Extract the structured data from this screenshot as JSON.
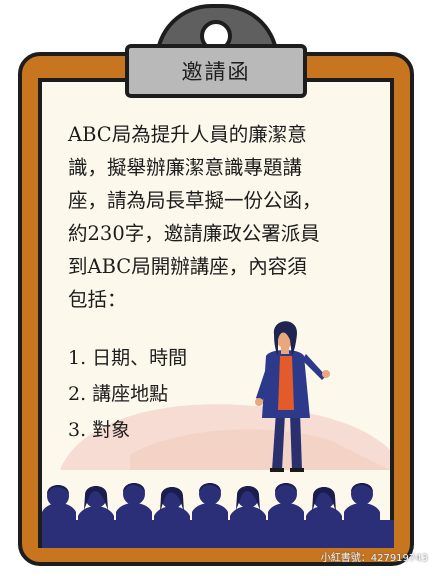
{
  "title": "邀請函",
  "body_lines": [
    "ABC局為提升人員的廉潔意",
    "識，擬舉辦廉潔意識專題講",
    "座，請為局長草擬一份公函，",
    "約230字，邀請廉政公署派員",
    "到ABC局開辦講座，內容須",
    "包括："
  ],
  "list_items": [
    "1. 日期、時間",
    "2. 講座地點",
    "3. 對象"
  ],
  "watermark": "小紅書號：427919743",
  "colors": {
    "board": "#c8751f",
    "paper": "#fdf8ec",
    "clip": "#5f5f5f",
    "title_box": "#b9b9b9",
    "outline": "#1d1d1d",
    "audience": "#2b2f78",
    "speaker_jacket": "#2d3a8c",
    "speaker_top": "#e35a2b"
  }
}
